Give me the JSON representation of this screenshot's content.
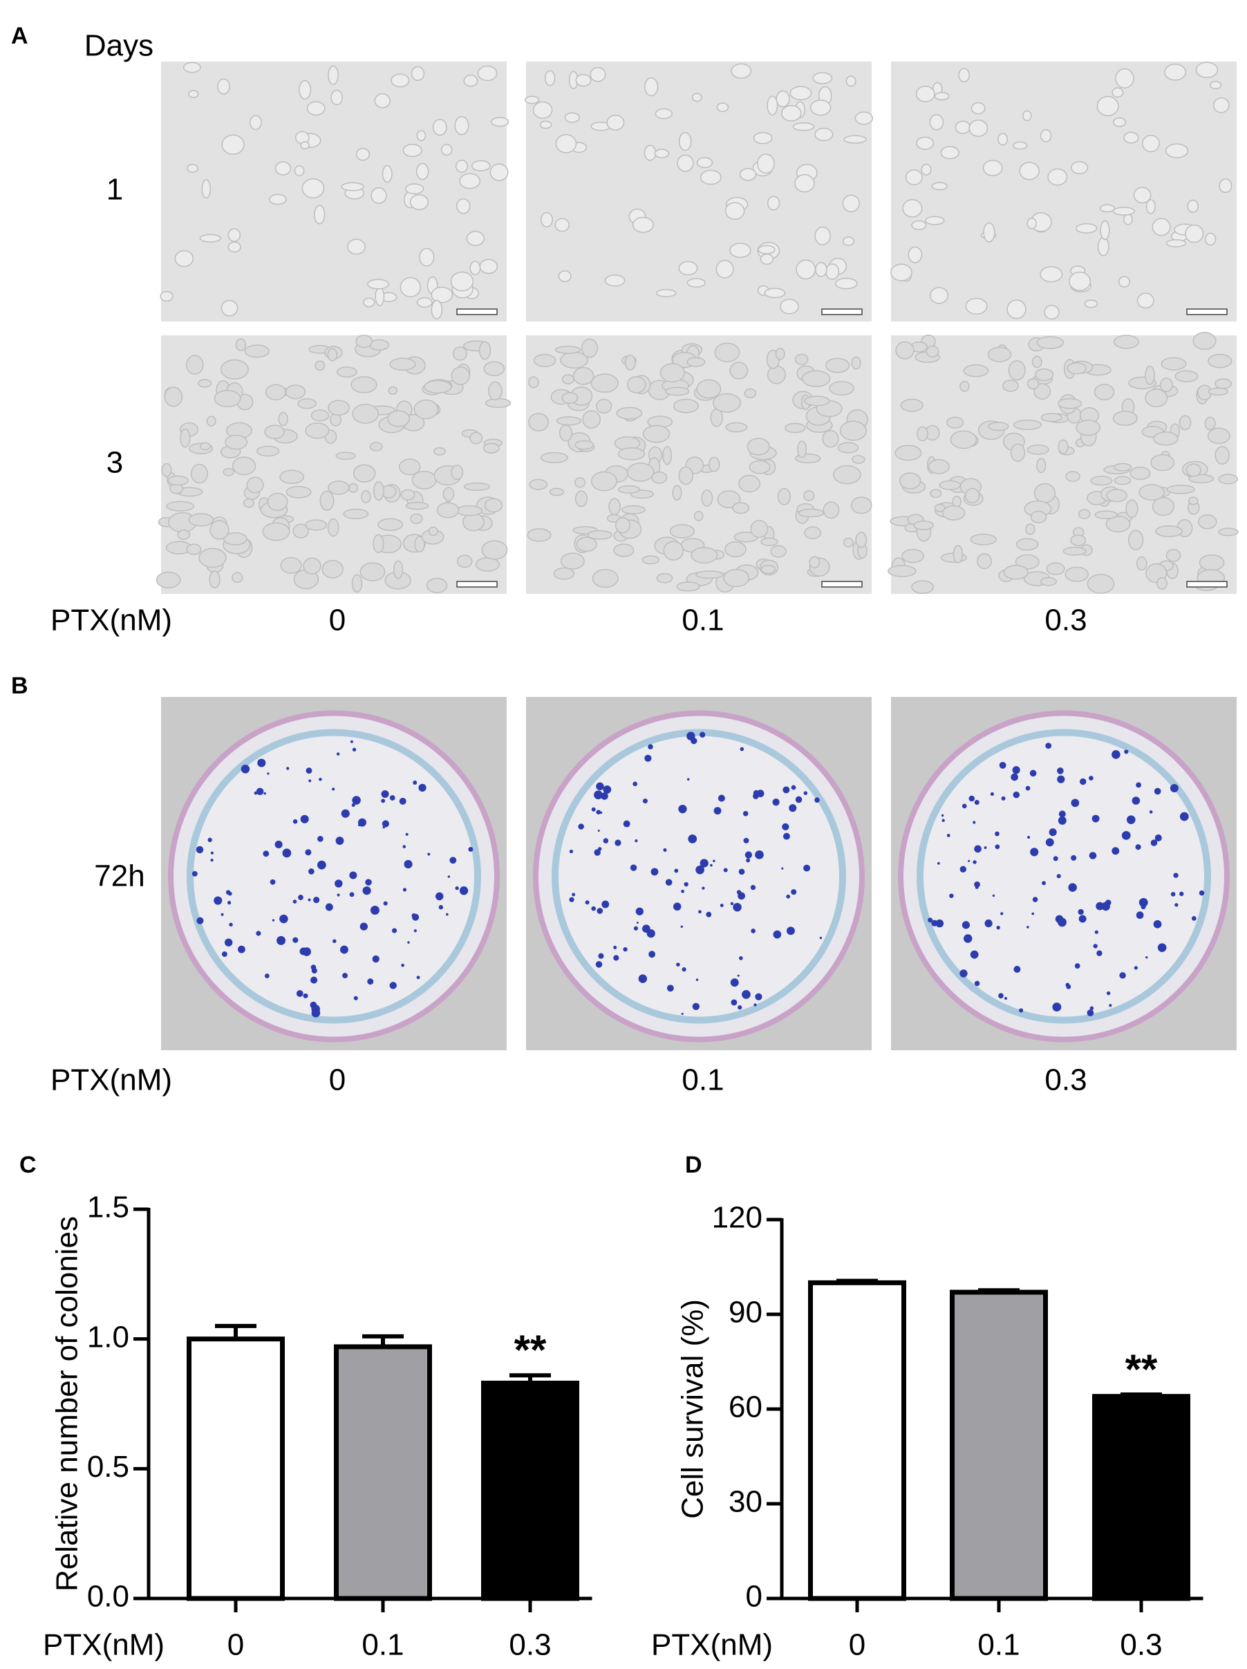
{
  "panel_a": {
    "label": "A",
    "row_header": "Days",
    "rows": [
      "1",
      "3"
    ],
    "x_label": "PTX(nM)",
    "columns": [
      "0",
      "0.1",
      "0.3"
    ]
  },
  "panel_b": {
    "label": "B",
    "rows": [
      "72h"
    ],
    "x_label": "PTX(nM)",
    "columns": [
      "0",
      "0.1",
      "0.3"
    ]
  },
  "chart_data": [
    {
      "type": "bar",
      "panel_label": "C",
      "ylabel": "Relative number of colonies",
      "xlabel": "PTX(nM)",
      "categories": [
        "0",
        "0.1",
        "0.3"
      ],
      "values": [
        1.0,
        0.97,
        0.83
      ],
      "errors": [
        0.05,
        0.04,
        0.03
      ],
      "colors": [
        "#ffffff",
        "#a0a0a4",
        "#000000"
      ],
      "significance": [
        null,
        null,
        "**"
      ],
      "ylim": [
        0,
        1.5
      ],
      "yticks": [
        {
          "value": 0,
          "label": "0.0"
        },
        0.5,
        {
          "value": 1,
          "label": "1.0"
        },
        1.5
      ]
    },
    {
      "type": "bar",
      "panel_label": "D",
      "ylabel": "Cell survival (%)",
      "xlabel": "PTX(nM)",
      "categories": [
        "0",
        "0.1",
        "0.3"
      ],
      "values": [
        100,
        97,
        64
      ],
      "errors": [
        0.6,
        0.6,
        0.6
      ],
      "colors": [
        "#ffffff",
        "#a0a0a4",
        "#000000"
      ],
      "significance": [
        null,
        null,
        "**"
      ],
      "ylim": [
        0,
        120
      ],
      "yticks": [
        0,
        30,
        60,
        90,
        120
      ]
    }
  ]
}
